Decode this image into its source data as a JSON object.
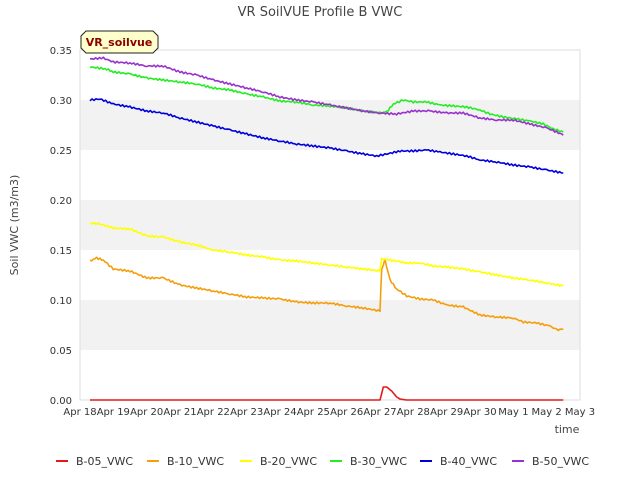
{
  "chart_data": {
    "type": "line",
    "title": "VR SoilVUE Profile B VWC",
    "xlabel": "time",
    "ylabel": "Soil VWC (m3/m3)",
    "badge": "VR_soilvue",
    "ylim": [
      0,
      0.35
    ],
    "xlim": [
      0,
      15
    ],
    "y_ticks": [
      "0.00",
      "0.05",
      "0.10",
      "0.15",
      "0.20",
      "0.25",
      "0.30",
      "0.35"
    ],
    "y_tick_values": [
      0,
      0.05,
      0.1,
      0.15,
      0.2,
      0.25,
      0.3,
      0.35
    ],
    "x_ticks": [
      "Apr 18",
      "Apr 19",
      "Apr 20",
      "Apr 21",
      "Apr 22",
      "Apr 23",
      "Apr 24",
      "Apr 25",
      "Apr 26",
      "Apr 27",
      "Apr 28",
      "Apr 29",
      "Apr 30",
      "May 1",
      "May 2",
      "May 3"
    ],
    "grid": "horizontal bands",
    "legend_position": "bottom",
    "series": [
      {
        "name": "B-05_VWC",
        "color": "#e31a1c",
        "points": [
          [
            0.3,
            0
          ],
          [
            9.0,
            0
          ],
          [
            9.1,
            0.013
          ],
          [
            9.2,
            0.013
          ],
          [
            9.35,
            0.009
          ],
          [
            9.5,
            0.003
          ],
          [
            9.6,
            0.001
          ],
          [
            9.8,
            0
          ],
          [
            14.5,
            0
          ]
        ]
      },
      {
        "name": "B-10_VWC",
        "color": "#f59e0b",
        "points": [
          [
            0.3,
            0.139
          ],
          [
            0.5,
            0.142
          ],
          [
            0.7,
            0.14
          ],
          [
            1.0,
            0.131
          ],
          [
            1.5,
            0.129
          ],
          [
            2.0,
            0.122
          ],
          [
            2.5,
            0.122
          ],
          [
            3.0,
            0.115
          ],
          [
            3.5,
            0.112
          ],
          [
            4.0,
            0.109
          ],
          [
            4.5,
            0.106
          ],
          [
            5.0,
            0.103
          ],
          [
            5.5,
            0.102
          ],
          [
            6.0,
            0.101
          ],
          [
            6.5,
            0.098
          ],
          [
            7.0,
            0.097
          ],
          [
            7.5,
            0.097
          ],
          [
            8.0,
            0.094
          ],
          [
            8.5,
            0.092
          ],
          [
            9.0,
            0.089
          ],
          [
            9.05,
            0.13
          ],
          [
            9.15,
            0.14
          ],
          [
            9.3,
            0.12
          ],
          [
            9.5,
            0.111
          ],
          [
            9.8,
            0.104
          ],
          [
            10.2,
            0.101
          ],
          [
            10.6,
            0.1
          ],
          [
            11.0,
            0.095
          ],
          [
            11.5,
            0.093
          ],
          [
            12.0,
            0.085
          ],
          [
            12.5,
            0.083
          ],
          [
            13.0,
            0.082
          ],
          [
            13.3,
            0.078
          ],
          [
            13.7,
            0.077
          ],
          [
            14.1,
            0.074
          ],
          [
            14.3,
            0.07
          ],
          [
            14.5,
            0.071
          ]
        ]
      },
      {
        "name": "B-20_VWC",
        "color": "#ffff00",
        "points": [
          [
            0.3,
            0.177
          ],
          [
            0.6,
            0.176
          ],
          [
            1.0,
            0.172
          ],
          [
            1.5,
            0.171
          ],
          [
            2.0,
            0.164
          ],
          [
            2.5,
            0.163
          ],
          [
            3.0,
            0.158
          ],
          [
            3.5,
            0.155
          ],
          [
            4.0,
            0.15
          ],
          [
            4.5,
            0.148
          ],
          [
            5.0,
            0.145
          ],
          [
            5.5,
            0.143
          ],
          [
            6.0,
            0.14
          ],
          [
            6.5,
            0.139
          ],
          [
            7.0,
            0.137
          ],
          [
            7.5,
            0.135
          ],
          [
            8.0,
            0.133
          ],
          [
            8.5,
            0.131
          ],
          [
            9.0,
            0.129
          ],
          [
            9.05,
            0.141
          ],
          [
            9.3,
            0.14
          ],
          [
            9.8,
            0.137
          ],
          [
            10.2,
            0.137
          ],
          [
            10.6,
            0.134
          ],
          [
            11.0,
            0.133
          ],
          [
            11.5,
            0.131
          ],
          [
            12.0,
            0.128
          ],
          [
            12.5,
            0.125
          ],
          [
            13.0,
            0.122
          ],
          [
            13.5,
            0.12
          ],
          [
            14.0,
            0.117
          ],
          [
            14.5,
            0.114
          ]
        ]
      },
      {
        "name": "B-30_VWC",
        "color": "#22ee22",
        "points": [
          [
            0.3,
            0.333
          ],
          [
            0.8,
            0.331
          ],
          [
            1.0,
            0.328
          ],
          [
            1.5,
            0.326
          ],
          [
            2.0,
            0.322
          ],
          [
            2.5,
            0.32
          ],
          [
            3.0,
            0.318
          ],
          [
            3.5,
            0.316
          ],
          [
            4.0,
            0.312
          ],
          [
            4.5,
            0.31
          ],
          [
            5.0,
            0.306
          ],
          [
            5.5,
            0.303
          ],
          [
            6.0,
            0.299
          ],
          [
            6.5,
            0.298
          ],
          [
            7.0,
            0.295
          ],
          [
            7.5,
            0.294
          ],
          [
            8.0,
            0.292
          ],
          [
            8.5,
            0.289
          ],
          [
            9.0,
            0.287
          ],
          [
            9.2,
            0.288
          ],
          [
            9.4,
            0.296
          ],
          [
            9.7,
            0.3
          ],
          [
            10.0,
            0.298
          ],
          [
            10.4,
            0.298
          ],
          [
            10.8,
            0.295
          ],
          [
            11.2,
            0.294
          ],
          [
            11.6,
            0.293
          ],
          [
            12.0,
            0.29
          ],
          [
            12.3,
            0.286
          ],
          [
            12.7,
            0.283
          ],
          [
            13.1,
            0.281
          ],
          [
            13.5,
            0.279
          ],
          [
            13.9,
            0.276
          ],
          [
            14.2,
            0.271
          ],
          [
            14.5,
            0.268
          ]
        ]
      },
      {
        "name": "B-40_VWC",
        "color": "#0000dd",
        "points": [
          [
            0.3,
            0.3
          ],
          [
            0.6,
            0.301
          ],
          [
            1.0,
            0.296
          ],
          [
            1.5,
            0.293
          ],
          [
            2.0,
            0.289
          ],
          [
            2.5,
            0.287
          ],
          [
            3.0,
            0.282
          ],
          [
            3.5,
            0.278
          ],
          [
            4.0,
            0.274
          ],
          [
            4.5,
            0.27
          ],
          [
            5.0,
            0.266
          ],
          [
            5.5,
            0.262
          ],
          [
            6.0,
            0.259
          ],
          [
            6.5,
            0.256
          ],
          [
            7.0,
            0.254
          ],
          [
            7.5,
            0.252
          ],
          [
            8.0,
            0.249
          ],
          [
            8.5,
            0.246
          ],
          [
            8.9,
            0.244
          ],
          [
            9.2,
            0.246
          ],
          [
            9.6,
            0.249
          ],
          [
            10.0,
            0.249
          ],
          [
            10.4,
            0.25
          ],
          [
            10.8,
            0.248
          ],
          [
            11.2,
            0.246
          ],
          [
            11.6,
            0.244
          ],
          [
            12.0,
            0.24
          ],
          [
            12.5,
            0.238
          ],
          [
            13.0,
            0.235
          ],
          [
            13.5,
            0.233
          ],
          [
            14.0,
            0.23
          ],
          [
            14.5,
            0.227
          ]
        ]
      },
      {
        "name": "B-50_VWC",
        "color": "#9932cc",
        "points": [
          [
            0.3,
            0.341
          ],
          [
            0.7,
            0.342
          ],
          [
            1.0,
            0.338
          ],
          [
            1.5,
            0.337
          ],
          [
            2.0,
            0.334
          ],
          [
            2.5,
            0.334
          ],
          [
            3.0,
            0.328
          ],
          [
            3.5,
            0.325
          ],
          [
            4.0,
            0.32
          ],
          [
            4.5,
            0.316
          ],
          [
            5.0,
            0.312
          ],
          [
            5.5,
            0.308
          ],
          [
            6.0,
            0.303
          ],
          [
            6.5,
            0.3
          ],
          [
            7.0,
            0.298
          ],
          [
            7.5,
            0.295
          ],
          [
            8.0,
            0.292
          ],
          [
            8.5,
            0.289
          ],
          [
            9.0,
            0.287
          ],
          [
            9.5,
            0.286
          ],
          [
            10.0,
            0.289
          ],
          [
            10.5,
            0.289
          ],
          [
            11.0,
            0.287
          ],
          [
            11.5,
            0.287
          ],
          [
            12.0,
            0.282
          ],
          [
            12.5,
            0.28
          ],
          [
            13.0,
            0.28
          ],
          [
            13.5,
            0.276
          ],
          [
            14.0,
            0.272
          ],
          [
            14.3,
            0.268
          ],
          [
            14.5,
            0.265
          ]
        ]
      }
    ]
  }
}
